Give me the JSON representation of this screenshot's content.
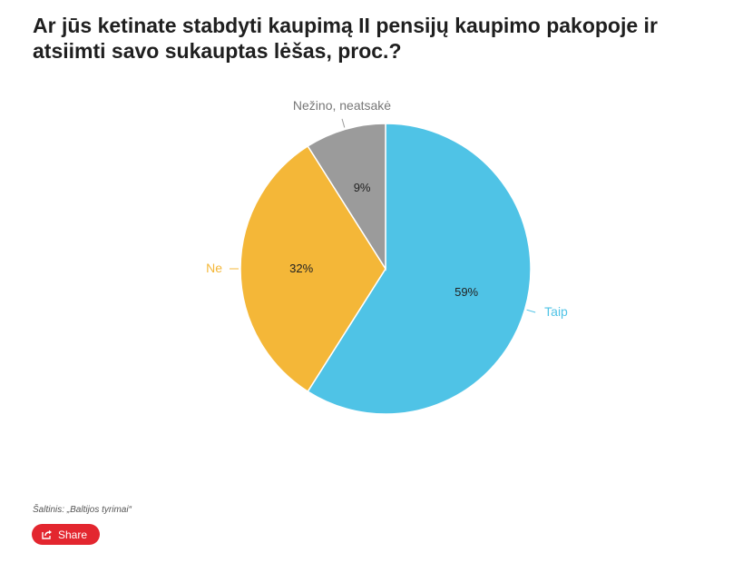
{
  "chart_data": {
    "type": "pie",
    "title": "Ar jūs ketinate stabdyti kaupimą II pensijų kaupimo pakopoje ir atsiimti savo sukauptas lėšas, proc.?",
    "categories": [
      "Taip",
      "Ne",
      "Nežino, neatsakė"
    ],
    "values": [
      59,
      32,
      9
    ],
    "value_labels": [
      "59%",
      "32%",
      "9%"
    ],
    "colors": [
      "#4fc3e6",
      "#f4b738",
      "#9b9b9b"
    ],
    "legend": "none"
  },
  "source": "Šaltinis: „Baltijos tyrimai“",
  "share": {
    "label": "Share",
    "icon": "share-icon"
  }
}
